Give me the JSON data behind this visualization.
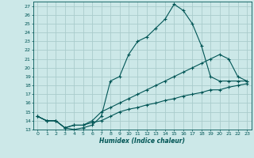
{
  "title": "",
  "xlabel": "Humidex (Indice chaleur)",
  "bg_color": "#cce8e8",
  "grid_color": "#aacccc",
  "line_color": "#005555",
  "xlim": [
    -0.5,
    23.5
  ],
  "ylim": [
    13,
    27.5
  ],
  "yticks": [
    13,
    14,
    15,
    16,
    17,
    18,
    19,
    20,
    21,
    22,
    23,
    24,
    25,
    26,
    27
  ],
  "xticks": [
    0,
    1,
    2,
    3,
    4,
    5,
    6,
    7,
    8,
    9,
    10,
    11,
    12,
    13,
    14,
    15,
    16,
    17,
    18,
    19,
    20,
    21,
    22,
    23
  ],
  "line1_x": [
    0,
    1,
    2,
    3,
    4,
    5,
    6,
    7,
    8,
    9,
    10,
    11,
    12,
    13,
    14,
    15,
    16,
    17,
    18,
    19,
    20,
    21,
    22,
    23
  ],
  "line1_y": [
    14.5,
    14.0,
    14.0,
    13.2,
    13.0,
    13.2,
    13.5,
    14.5,
    18.5,
    19.0,
    21.5,
    23.0,
    23.5,
    24.5,
    25.5,
    27.2,
    26.5,
    25.0,
    22.5,
    19.0,
    18.5,
    18.5,
    18.5,
    18.5
  ],
  "line2_x": [
    0,
    1,
    2,
    3,
    4,
    5,
    6,
    7,
    8,
    9,
    10,
    11,
    12,
    13,
    14,
    15,
    16,
    17,
    18,
    19,
    20,
    21,
    22,
    23
  ],
  "line2_y": [
    14.5,
    14.0,
    14.0,
    13.2,
    13.5,
    13.5,
    14.0,
    15.0,
    15.5,
    16.0,
    16.5,
    17.0,
    17.5,
    18.0,
    18.5,
    19.0,
    19.5,
    20.0,
    20.5,
    21.0,
    21.5,
    21.0,
    19.0,
    18.5
  ],
  "line3_x": [
    0,
    1,
    2,
    3,
    4,
    5,
    6,
    7,
    8,
    9,
    10,
    11,
    12,
    13,
    14,
    15,
    16,
    17,
    18,
    19,
    20,
    21,
    22,
    23
  ],
  "line3_y": [
    14.5,
    14.0,
    14.0,
    13.2,
    13.5,
    13.5,
    13.8,
    14.0,
    14.5,
    15.0,
    15.3,
    15.5,
    15.8,
    16.0,
    16.3,
    16.5,
    16.8,
    17.0,
    17.2,
    17.5,
    17.5,
    17.8,
    18.0,
    18.2
  ]
}
